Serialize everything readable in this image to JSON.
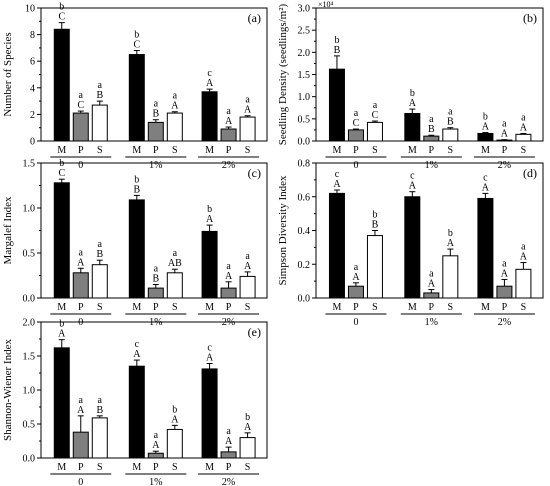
{
  "panel_order": [
    "a",
    "b",
    "c",
    "d",
    "e"
  ],
  "bar_colors": {
    "M": "#000000",
    "P": "#7f7f7f",
    "S": "#ffffff"
  },
  "chart_data": [
    {
      "type": "bar",
      "panel_label": "(a)",
      "ylabel": "Number of Species",
      "ylim": [
        0,
        10
      ],
      "yticks": [
        0,
        2,
        4,
        6,
        8,
        10
      ],
      "ytick_labels": [
        "0",
        "2",
        "4",
        "6",
        "8",
        "10"
      ],
      "groups": [
        "0",
        "1%",
        "2%"
      ],
      "categories": [
        "M",
        "P",
        "S"
      ],
      "values": [
        [
          8.4,
          2.1,
          2.7
        ],
        [
          6.5,
          1.4,
          2.1
        ],
        [
          3.7,
          0.9,
          1.8
        ]
      ],
      "errors": [
        [
          0.5,
          0.15,
          0.3
        ],
        [
          0.3,
          0.2,
          0.1
        ],
        [
          0.2,
          0.15,
          0.1
        ]
      ],
      "letters_top": [
        [
          "b",
          "a",
          "a"
        ],
        [
          "b",
          "a",
          "a"
        ],
        [
          "c",
          "a",
          "a"
        ]
      ],
      "letters_bottom": [
        [
          "C",
          "C",
          "B"
        ],
        [
          "C",
          "B",
          "A"
        ],
        [
          "A",
          "A",
          "A"
        ]
      ]
    },
    {
      "type": "bar",
      "panel_label": "(b)",
      "ylabel": "Seedling  Density (seedlings/m²)",
      "multiplier_label": "×10⁴",
      "ylim": [
        0,
        3
      ],
      "yticks": [
        0,
        0.5,
        1,
        1.5,
        2,
        2.5,
        3
      ],
      "ytick_labels": [
        "0.0",
        "0.5",
        "1.0",
        "1.5",
        "2.0",
        "2.5",
        "3.0"
      ],
      "groups": [
        "0",
        "1%",
        "2%"
      ],
      "categories": [
        "M",
        "P",
        "S"
      ],
      "values": [
        [
          1.62,
          0.25,
          0.42
        ],
        [
          0.62,
          0.11,
          0.27
        ],
        [
          0.17,
          0.02,
          0.15
        ]
      ],
      "errors": [
        [
          0.3,
          0.02,
          0.03
        ],
        [
          0.1,
          0.02,
          0.03
        ],
        [
          0.02,
          0.01,
          0.02
        ]
      ],
      "letters_top": [
        [
          "b",
          "a",
          "a"
        ],
        [
          "b",
          "a",
          "a"
        ],
        [
          "b",
          "a",
          "a"
        ]
      ],
      "letters_bottom": [
        [
          "B",
          "C",
          "C"
        ],
        [
          "A",
          "B",
          "B"
        ],
        [
          "A",
          "A",
          "A"
        ]
      ]
    },
    {
      "type": "bar",
      "panel_label": "(c)",
      "ylabel": "Margalef Index",
      "ylim": [
        0,
        1.5
      ],
      "yticks": [
        0,
        0.5,
        1,
        1.5
      ],
      "ytick_labels": [
        "0.0",
        "0.5",
        "1.0",
        "1.5"
      ],
      "groups": [
        "0",
        "1%",
        "2%"
      ],
      "categories": [
        "M",
        "P",
        "S"
      ],
      "values": [
        [
          1.28,
          0.28,
          0.37
        ],
        [
          1.09,
          0.11,
          0.28
        ],
        [
          0.74,
          0.11,
          0.24
        ]
      ],
      "errors": [
        [
          0.04,
          0.05,
          0.05
        ],
        [
          0.05,
          0.04,
          0.04
        ],
        [
          0.07,
          0.07,
          0.05
        ]
      ],
      "letters_top": [
        [
          "b",
          "a",
          "a"
        ],
        [
          "b",
          "a",
          "a"
        ],
        [
          "b",
          "a",
          "a"
        ]
      ],
      "letters_bottom": [
        [
          "C",
          "A",
          "B"
        ],
        [
          "B",
          "B",
          "AB"
        ],
        [
          "A",
          "A",
          "A"
        ]
      ]
    },
    {
      "type": "bar",
      "panel_label": "(d)",
      "ylabel": "Simpson Diversity Index",
      "ylim": [
        0,
        0.8
      ],
      "yticks": [
        0,
        0.2,
        0.4,
        0.6,
        0.8
      ],
      "ytick_labels": [
        "0.0",
        "0.2",
        "0.4",
        "0.6",
        "0.8"
      ],
      "groups": [
        "0",
        "1%",
        "2%"
      ],
      "categories": [
        "M",
        "P",
        "S"
      ],
      "values": [
        [
          0.62,
          0.07,
          0.37
        ],
        [
          0.6,
          0.03,
          0.25
        ],
        [
          0.59,
          0.07,
          0.17
        ]
      ],
      "errors": [
        [
          0.02,
          0.02,
          0.03
        ],
        [
          0.03,
          0.02,
          0.04
        ],
        [
          0.03,
          0.04,
          0.04
        ]
      ],
      "letters_top": [
        [
          "c",
          "a",
          "b"
        ],
        [
          "c",
          "a",
          "b"
        ],
        [
          "c",
          "a",
          "a"
        ]
      ],
      "letters_bottom": [
        [
          "A",
          "A",
          "B"
        ],
        [
          "A",
          "A",
          "A"
        ],
        [
          "A",
          "A",
          "A"
        ]
      ]
    },
    {
      "type": "bar",
      "panel_label": "(e)",
      "ylabel": "Shannon-Wiener Index",
      "ylim": [
        0,
        2
      ],
      "yticks": [
        0,
        0.5,
        1,
        1.5,
        2
      ],
      "ytick_labels": [
        "0.0",
        "0.5",
        "1.0",
        "1.5",
        "2.0"
      ],
      "groups": [
        "0",
        "1%",
        "2%"
      ],
      "categories": [
        "M",
        "P",
        "S"
      ],
      "values": [
        [
          1.62,
          0.38,
          0.59
        ],
        [
          1.35,
          0.07,
          0.42
        ],
        [
          1.31,
          0.09,
          0.3
        ]
      ],
      "errors": [
        [
          0.12,
          0.24,
          0.03
        ],
        [
          0.09,
          0.03,
          0.06
        ],
        [
          0.08,
          0.07,
          0.07
        ]
      ],
      "letters_top": [
        [
          "b",
          "a",
          "a"
        ],
        [
          "c",
          "a",
          "b"
        ],
        [
          "c",
          "a",
          "b"
        ]
      ],
      "letters_bottom": [
        [
          "A",
          "A",
          "B"
        ],
        [
          "A",
          "A",
          "A"
        ],
        [
          "A",
          "A",
          "A"
        ]
      ]
    }
  ]
}
